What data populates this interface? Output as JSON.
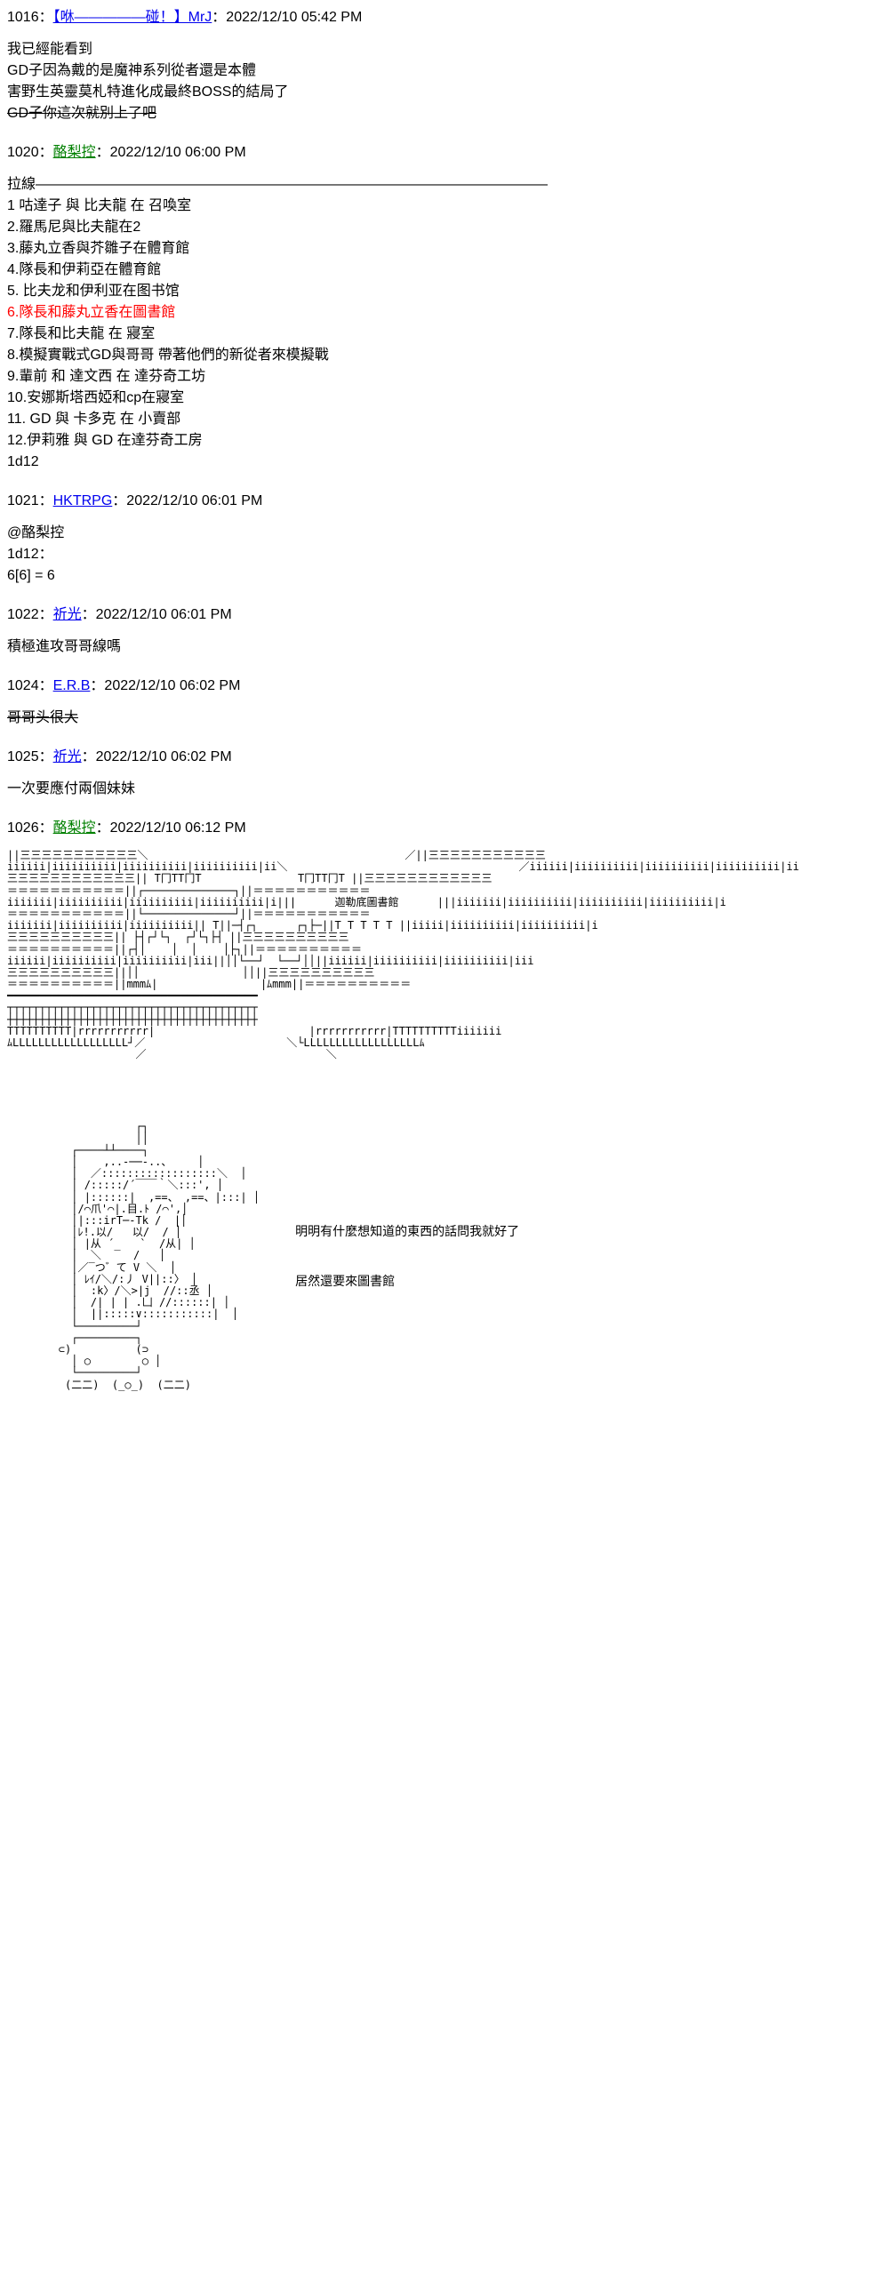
{
  "colors": {
    "link_blue": "#0000ee",
    "link_green": "#008000",
    "text": "#000000",
    "red": "#ff0000",
    "bg": "#ffffff"
  },
  "posts": [
    {
      "num": "1016",
      "user": "【咻—————碰！】MrJ",
      "user_color": "blue",
      "time": "2022/12/10 05:42 PM",
      "lines": [
        "我已經能看到",
        "GD子因為戴的是魔神系列從者還是本體",
        "害野生英靈莫札特進化成最終BOSS的結局了"
      ],
      "strike": "GD子你這次就別上了吧"
    },
    {
      "num": "1020",
      "user": "酪梨控",
      "user_color": "green",
      "time": "2022/12/10 06:00 PM",
      "body": "拉線————————————————————————————————————\n1 咕達子 與 比夫龍 在 召喚室\n2.羅馬尼與比夫龍在2\n3.藤丸立香與芥雛子在體育館\n4.隊長和伊莉亞在體育館\n5. 比夫龙和伊利亚在图书馆",
      "red_line": "6.隊長和藤丸立香在圖書館",
      "body2": "7.隊長和比夫龍 在 寢室\n8.模擬實戰式GD與哥哥 帶著他們的新從者來模擬戰\n9.輩前 和 達文西 在 達芬奇工坊\n10.安娜斯塔西婭和cp在寢室\n11. GD 與 卡多克 在 小賣部\n12.伊莉雅 與 GD 在達芬奇工房\n1d12"
    },
    {
      "num": "1021",
      "user": "HKTRPG",
      "user_color": "blue",
      "time": "2022/12/10 06:01 PM",
      "body": "@酪梨控\n1d12：\n6[6] = 6"
    },
    {
      "num": "1022",
      "user": "祈光",
      "user_color": "blue",
      "time": "2022/12/10 06:01 PM",
      "body": "積極進攻哥哥線嗎"
    },
    {
      "num": "1024",
      "user": "E.R.B",
      "user_color": "blue",
      "time": "2022/12/10 06:02 PM",
      "strike_only": "哥哥头很大"
    },
    {
      "num": "1025",
      "user": "祈光",
      "user_color": "blue",
      "time": "2022/12/10 06:02 PM",
      "body": "一次要應付兩個妹妹"
    },
    {
      "num": "1026",
      "user": "酪梨控",
      "user_color": "green",
      "time": "2022/12/10 06:12 PM",
      "ascii_building": "||三三三三三三三三三三三＼                                        ／||三三三三三三三三三三三\niiiiii|iiiiiiiiii|iiiiiiiiii|iiiiiiiiii|ii＼                                    ／iiiiii|iiiiiiiiii|iiiiiiiiii|iiiiiiiiii|ii\n三三三三三三三三三三三三|| T冂TT冂T               T冂TT冂T ||三三三三三三三三三三三三\n＝＝＝＝＝＝＝＝＝＝＝||┌──────────────┐||＝＝＝＝＝＝＝＝＝＝＝\niiiiiii|iiiiiiiiii|iiiiiiiiii|iiiiiiiiii|i|||      迦勒底圖書館      |||iiiiiii|iiiiiiiiii|iiiiiiiiii|iiiiiiiiii|i\n＝＝＝＝＝＝＝＝＝＝＝||└──────────────┘||＝＝＝＝＝＝＝＝＝＝＝\niiiiiii|iiiiiiiiii|iiiiiiiiii|| T||─┤┌┐      ┌┐├─||T T T T T ||iiiii|iiiiiiiiii|iiiiiiiiii|i\n三三三三三三三三三三|| ├┤┌┘└┐  ┌┘└┐├┤ ||三三三三三三三三三三\n＝＝＝＝＝＝＝＝＝＝||┌┤│    │  │    │├┐||＝＝＝＝＝＝＝＝＝＝\niiiiii|iiiiiiiiii|iiiiiiiiii|iii||││└──┘  └──┘││||iiiiii|iiiiiiiiii|iiiiiiiiii|iii\n三三三三三三三三三三||││                ││||三三三三三三三三三三\n＝＝＝＝＝＝＝＝＝＝||mmmﾑ|                |ﾑmmm||＝＝＝＝＝＝＝＝＝＝\n━━━━━━━━━━━━━━━━━━━━━━━━━━━━━━━━━━━━━━━\n┬┬┬┬┬┬┬┬┬┬┬┬┬┬┬┬┬┬┬┬┬┬┬┬┬┬┬┬┬┬┬┬┬┬┬┬┬┬┬\n┼┼┼┼┼┼┼┼┼┼┼┼┼┼┼┼┼┼┼┼┼┼┼┼┼┼┼┼┼┼┼┼┼┼┼┼┼┼┼\nTTTTTTTTTT|rrrrrrrrrrr|                        |rrrrrrrrrrr|TTTTTTTTTTiiiiiii\nﾑLLLLLLLLLLLLLLLLLL┘／                      ＼└LLLLLLLLLLLLLLLLLLﾑ\n                    ／                            ＼",
      "ascii_char": "                    ┌┐\n                    ││\n          ┌────┴┴────┐\n          │    ,..-──-..、    │\n          │  ／::::::::::::::::::＼  │\n          │ /:::::/´￣￣｀＼:::', │\n          │ |::::::|  ,==、 ,==、|:::| │\n          │/⌒爪'⌒|.目.ﾄ /⌒',│\n          │|:::irT─‐Tk /  |│\n          │ﾚ!.以/   以/  / │\n          │ |从 ´    `  /从| │\n          │  ＼  ‾  /   │\n          │／‾つ゛て V ＼  │\n          │ ﾚｲ/＼/:丿 V||::〉 │\n          │  :k〉/＼>|j  //::丞 │\n          │  /| | | .凵 //::::::| │\n          │  ||:::::∨:::::::::::|  │\n          └─────────┘\n          ┌─────────┐\n        ⊂)          (⊃\n          │ ○        ○ │\n          └─────────┘\n         (二二)  (_○_)  (二二)",
      "side_text_1": "明明有什麼想知道的東西的話問我就好了",
      "side_text_2": "居然還要來圖書館"
    }
  ]
}
